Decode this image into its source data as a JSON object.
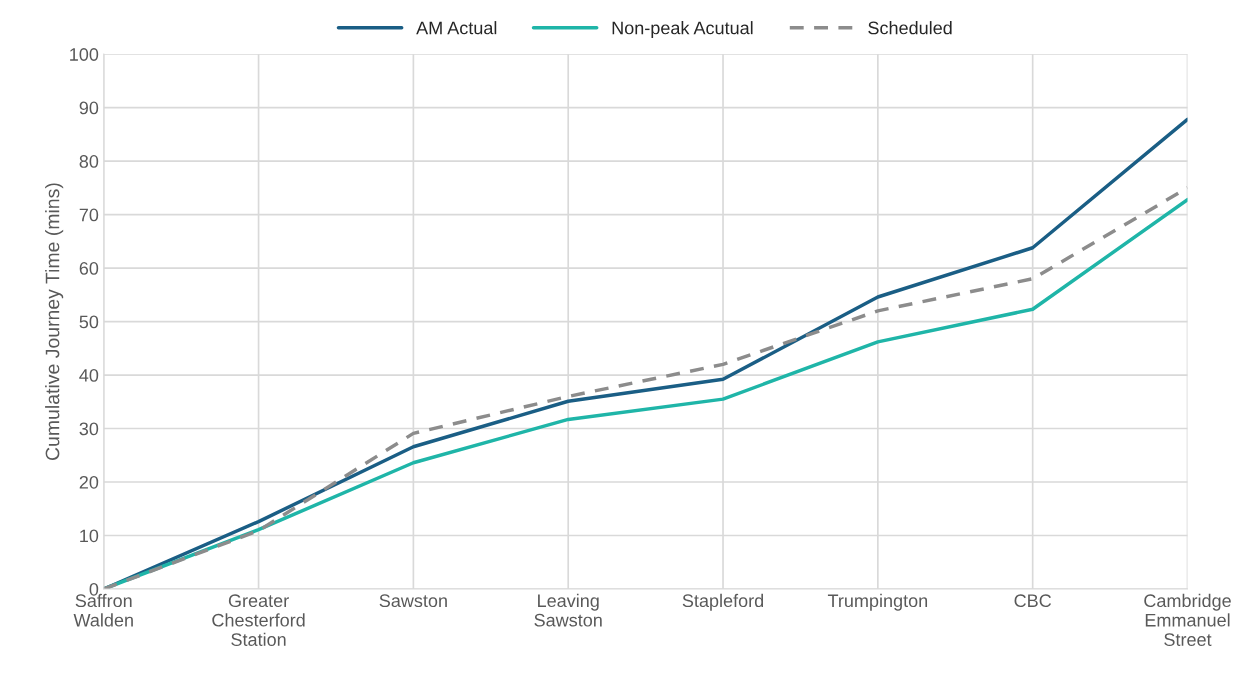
{
  "chart_data": {
    "type": "line",
    "ylabel": "Cumulative Journey Time (mins)",
    "categories": [
      "Saffron Walden",
      "Greater Chesterford Station",
      "Sawston",
      "Leaving Sawston",
      "Stapleford",
      "Trumpington",
      "CBC",
      "Cambridge Emmanuel Street"
    ],
    "series": [
      {
        "name": "AM Actual",
        "color": "#1a5e85",
        "line_style": "solid",
        "values": [
          0,
          12.6,
          26.6,
          35.1,
          39.2,
          54.6,
          63.8,
          87.8
        ]
      },
      {
        "name": "Non-peak Acutual",
        "color": "#1fb5a8",
        "line_style": "solid",
        "values": [
          0,
          11.1,
          23.6,
          31.7,
          35.5,
          46.2,
          52.3,
          72.8
        ]
      },
      {
        "name": "Scheduled",
        "color": "#8c8c8c",
        "line_style": "dashed",
        "values": [
          0,
          10.9,
          29.1,
          36.0,
          42.0,
          52.0,
          58.0,
          75.0
        ]
      }
    ],
    "ylim": [
      0,
      100
    ],
    "yticks": [
      0,
      10,
      20,
      30,
      40,
      50,
      60,
      70,
      80,
      90,
      100
    ],
    "grid": true,
    "legend": "top",
    "marker": "none"
  }
}
